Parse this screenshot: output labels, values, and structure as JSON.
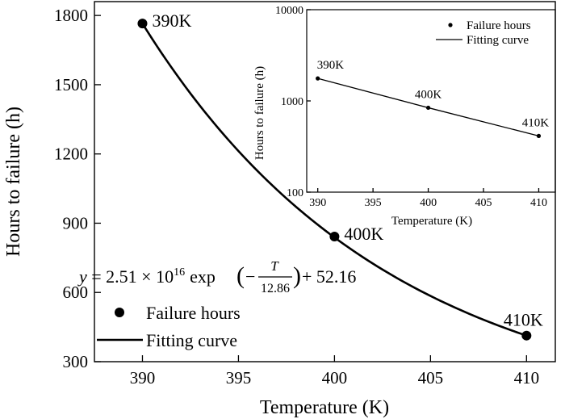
{
  "chart_data": [
    {
      "type": "scatter",
      "xlabel": "Temperature (K)",
      "ylabel": "Hours to failure (h)",
      "xlim": [
        387.5,
        411.5
      ],
      "ylim": [
        300,
        1860
      ],
      "xticks": [
        "390",
        "395",
        "400",
        "405",
        "410"
      ],
      "yticks": [
        "300",
        "600",
        "900",
        "1200",
        "1500",
        "1800"
      ],
      "grid": false,
      "legend_position": "bottom-left",
      "legend": [
        "Failure hours",
        "Fitting curve"
      ],
      "series": [
        {
          "name": "Failure hours",
          "style": "markers",
          "x": [
            390,
            400,
            410
          ],
          "y": [
            1765,
            842,
            413
          ],
          "point_labels": [
            "390K",
            "400K",
            "410K"
          ]
        },
        {
          "name": "Fitting curve",
          "style": "line",
          "model": {
            "a": 2.51e+16,
            "b": 12.86,
            "c": 52.16
          },
          "x_range": [
            390,
            410
          ]
        }
      ],
      "equation": {
        "y": "y",
        "eq": " = 2.51 × 10",
        "exp_power": "16",
        "exp_func": "exp",
        "minus": "−",
        "numerator": "T",
        "denominator": "12.86",
        "tail": " + 52.16"
      }
    },
    {
      "type": "scatter",
      "xlabel": "Temperature (K)",
      "ylabel": "Hours to failure (h)",
      "xlim": [
        389,
        411.5
      ],
      "ylim": [
        100,
        10000
      ],
      "yscale": "log",
      "xticks": [
        "390",
        "395",
        "400",
        "405",
        "410"
      ],
      "yticks": [
        "100",
        "1000",
        "10000"
      ],
      "grid": false,
      "legend_position": "top-right",
      "legend": [
        "Failure hours",
        "Fitting curve"
      ],
      "series": [
        {
          "name": "Failure hours",
          "style": "markers",
          "x": [
            390,
            400,
            410
          ],
          "y": [
            1765,
            842,
            413
          ],
          "point_labels": [
            "390K",
            "400K",
            "410K"
          ]
        },
        {
          "name": "Fitting curve",
          "style": "line",
          "x": [
            390,
            400,
            410
          ],
          "y": [
            1765,
            842,
            413
          ]
        }
      ]
    }
  ]
}
